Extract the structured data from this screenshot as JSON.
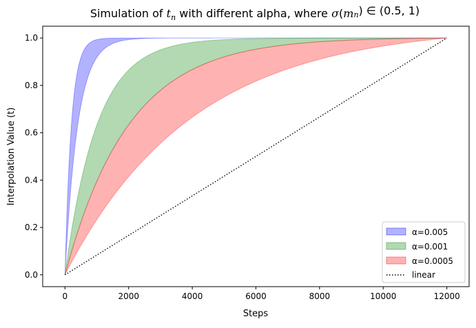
{
  "chart_data": {
    "type": "area",
    "title_parts": {
      "pre": "Simulation of ",
      "t": "t",
      "t_sub": "n",
      "mid": " with different alpha, where ",
      "sigma": "σ",
      "m": "m",
      "m_sub": "n",
      "post": ") ∈ (0.5, 1)"
    },
    "xlabel": "Steps",
    "ylabel": "Interpolation Value (t)",
    "xlim": [
      -700,
      12700
    ],
    "ylim": [
      -0.05,
      1.05
    ],
    "xticks": [
      0,
      2000,
      4000,
      6000,
      8000,
      10000,
      12000
    ],
    "xtick_labels": [
      "0",
      "2000",
      "4000",
      "6000",
      "8000",
      "10000",
      "12000"
    ],
    "yticks": [
      0.0,
      0.2,
      0.4,
      0.6,
      0.8,
      1.0
    ],
    "ytick_labels": [
      "0.0",
      "0.2",
      "0.4",
      "0.6",
      "0.8",
      "1.0"
    ],
    "x_max": 12000,
    "series": [
      {
        "name": "α=0.005",
        "alpha": 0.005,
        "sigma_range": [
          0.5,
          1
        ],
        "color": "#0000ff",
        "fill_opacity": 0.3
      },
      {
        "name": "α=0.001",
        "alpha": 0.001,
        "sigma_range": [
          0.5,
          1
        ],
        "color": "#008000",
        "fill_opacity": 0.3
      },
      {
        "name": "α=0.0005",
        "alpha": 0.0005,
        "sigma_range": [
          0.5,
          1
        ],
        "color": "#ff0000",
        "fill_opacity": 0.3
      }
    ],
    "reference_line": {
      "name": "linear",
      "points": [
        [
          0,
          0
        ],
        [
          12000,
          1
        ]
      ],
      "style": "dotted",
      "color": "#000000"
    },
    "legend_position": "lower right",
    "grid": false
  }
}
